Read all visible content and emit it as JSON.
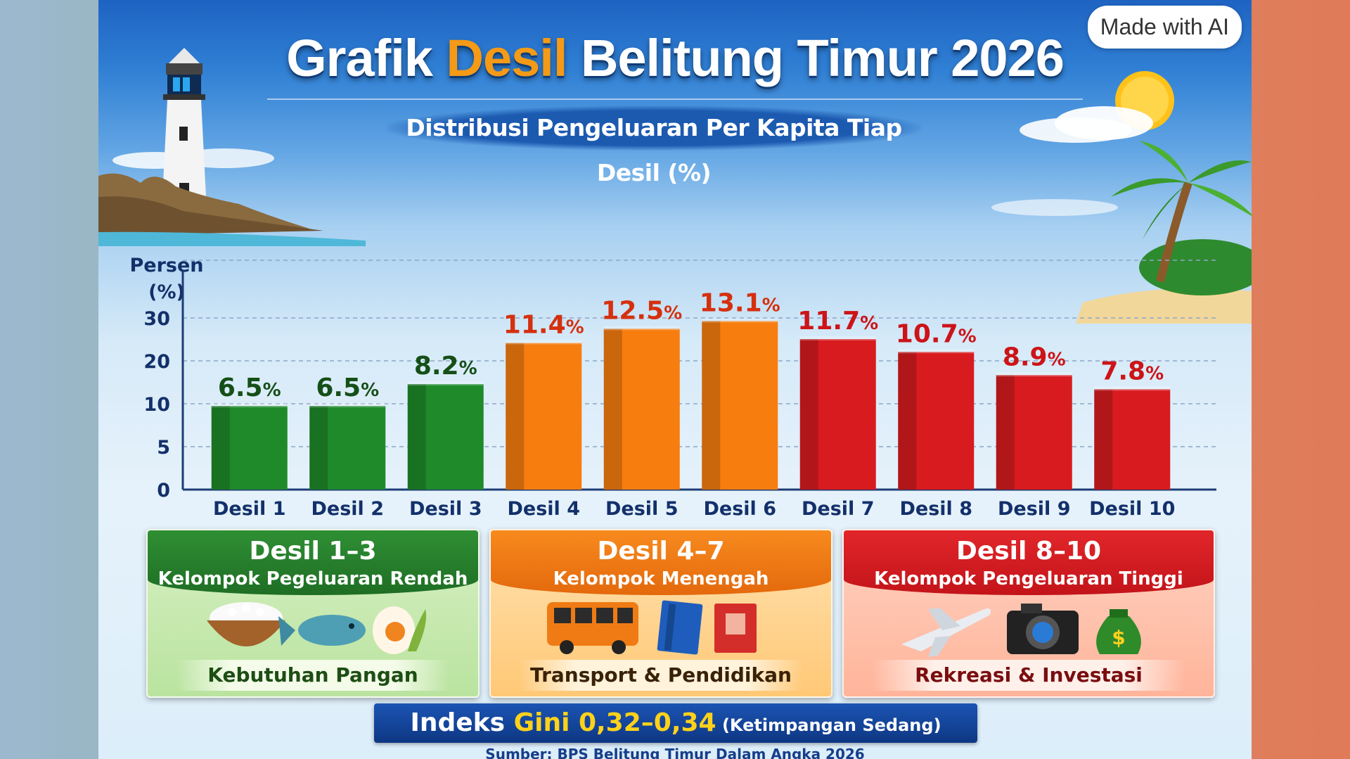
{
  "badge": "Made with AI",
  "header": {
    "title_part1": "Grafik ",
    "title_accent": "Desil",
    "title_part2": " Belitung Timur 2026",
    "subtitle": "Distribusi Pengeluaran Per Kapita Tiap Desil (%)"
  },
  "chart_data": {
    "type": "bar",
    "ylabel": "Persen (%)",
    "yticks": [
      "0",
      "5",
      "10",
      "20",
      "30"
    ],
    "categories": [
      "Desil 1",
      "Desil 2",
      "Desil 3",
      "Desil 4",
      "Desil 5",
      "Desil 6",
      "Desil 7",
      "Desil 8",
      "Desil 9",
      "Desil 10"
    ],
    "values": [
      6.5,
      6.5,
      8.2,
      11.4,
      12.5,
      13.1,
      11.7,
      10.7,
      8.9,
      7.8
    ],
    "value_labels": [
      "6.5",
      "6.5",
      "8.2",
      "11.4",
      "12.5",
      "13.1",
      "11.7",
      "10.7",
      "8.9",
      "7.8"
    ],
    "value_suffix": "%",
    "bar_colors": [
      "#1f8a2a",
      "#1f8a2a",
      "#1f8a2a",
      "#f77d0f",
      "#f77d0f",
      "#f77d0f",
      "#d81b1f",
      "#d81b1f",
      "#d81b1f",
      "#d81b1f"
    ],
    "label_colors": [
      "#154f18",
      "#154f18",
      "#154f18",
      "#d5300e",
      "#d5300e",
      "#d5300e",
      "#cc1418",
      "#cc1418",
      "#cc1418",
      "#cc1418"
    ],
    "grid": true
  },
  "groups": [
    {
      "range": "Desil 1–3",
      "name": "Kelompok Pegeluaran Rendah",
      "footer": "Kebutuhan Pangan",
      "icons": [
        "rice-bowl",
        "fish",
        "egg"
      ]
    },
    {
      "range": "Desil 4–7",
      "name": "Kelompok Menengah",
      "footer": "Transport & Pendidikan",
      "icons": [
        "bus",
        "books"
      ]
    },
    {
      "range": "Desil 8–10",
      "name": "Kelompok Pengeluaran Tinggi",
      "footer": "Rekreasi & Investasi",
      "icons": [
        "airplane",
        "camera",
        "money-bag"
      ]
    }
  ],
  "gini": {
    "prefix": "Indeks ",
    "highlight": "Gini 0,32–0,34",
    "note": " (Ketimpangan Sedang)"
  },
  "source": "Sumber: BPS Belitung Timur Dalam Angka 2026",
  "colors": {
    "green": "#1f8a2a",
    "orange": "#f77d0f",
    "red": "#d81b1f",
    "navy": "#0e3783",
    "title_accent": "#f59a16"
  }
}
